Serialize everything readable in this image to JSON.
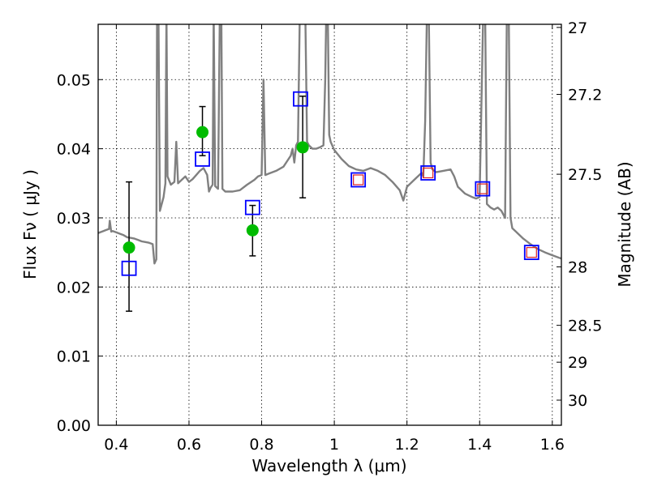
{
  "chart_data": {
    "type": "scatter",
    "xlabel": "Wavelength  λ (μm)",
    "ylabel": "Flux  Fν  ( μJy )",
    "ylabel_right": "Magnitude (AB)",
    "xlim": [
      0.35,
      1.625
    ],
    "ylim": [
      0.0,
      0.058
    ],
    "grid": true,
    "x_ticks": [
      {
        "v": 0.4,
        "label": "0.4"
      },
      {
        "v": 0.6,
        "label": "0.6"
      },
      {
        "v": 0.8,
        "label": "0.8"
      },
      {
        "v": 1.0,
        "label": "1"
      },
      {
        "v": 1.2,
        "label": "1.2"
      },
      {
        "v": 1.4,
        "label": "1.4"
      },
      {
        "v": 1.6,
        "label": "1.6"
      }
    ],
    "y_ticks": [
      {
        "v": 0.0,
        "label": "0.00"
      },
      {
        "v": 0.01,
        "label": "0.01"
      },
      {
        "v": 0.02,
        "label": "0.02"
      },
      {
        "v": 0.03,
        "label": "0.03"
      },
      {
        "v": 0.04,
        "label": "0.04"
      },
      {
        "v": 0.05,
        "label": "0.05"
      }
    ],
    "y2_ticks": [
      {
        "mag": 27,
        "label": "27"
      },
      {
        "mag": 27.2,
        "label": "27.2"
      },
      {
        "mag": 27.5,
        "label": "27.5"
      },
      {
        "mag": 28,
        "label": "28"
      },
      {
        "mag": 28.5,
        "label": "28.5"
      },
      {
        "mag": 29,
        "label": "29"
      },
      {
        "mag": 30,
        "label": "30"
      }
    ],
    "colors": {
      "sed": "#808080",
      "observed": "#00bb00",
      "model": "#0000ff",
      "model_inner": "#dd2222",
      "errorbar": "#000000"
    },
    "series": [
      {
        "kind": "line",
        "points": [
          [
            0.35,
            0.0278
          ],
          [
            0.36,
            0.028
          ],
          [
            0.37,
            0.0282
          ],
          [
            0.38,
            0.0284
          ],
          [
            0.382,
            0.0296
          ],
          [
            0.386,
            0.028
          ],
          [
            0.39,
            0.0281
          ],
          [
            0.4,
            0.0279
          ],
          [
            0.41,
            0.0277
          ],
          [
            0.42,
            0.0275
          ],
          [
            0.43,
            0.0272
          ],
          [
            0.44,
            0.0271
          ],
          [
            0.45,
            0.027
          ],
          [
            0.46,
            0.0268
          ],
          [
            0.47,
            0.0266
          ],
          [
            0.48,
            0.0265
          ],
          [
            0.49,
            0.0264
          ],
          [
            0.5,
            0.0262
          ],
          [
            0.505,
            0.0234
          ],
          [
            0.51,
            0.024
          ],
          [
            0.512,
            0.06
          ],
          [
            0.516,
            0.06
          ],
          [
            0.52,
            0.031
          ],
          [
            0.53,
            0.033
          ],
          [
            0.535,
            0.035
          ],
          [
            0.538,
            0.06
          ],
          [
            0.541,
            0.036
          ],
          [
            0.55,
            0.0348
          ],
          [
            0.56,
            0.0352
          ],
          [
            0.565,
            0.041
          ],
          [
            0.57,
            0.035
          ],
          [
            0.58,
            0.0355
          ],
          [
            0.59,
            0.036
          ],
          [
            0.6,
            0.0352
          ],
          [
            0.61,
            0.0356
          ],
          [
            0.62,
            0.0362
          ],
          [
            0.63,
            0.0368
          ],
          [
            0.64,
            0.0372
          ],
          [
            0.65,
            0.0362
          ],
          [
            0.655,
            0.0338
          ],
          [
            0.66,
            0.0344
          ],
          [
            0.665,
            0.0348
          ],
          [
            0.668,
            0.06
          ],
          [
            0.672,
            0.0346
          ],
          [
            0.68,
            0.0342
          ],
          [
            0.685,
            0.06
          ],
          [
            0.689,
            0.06
          ],
          [
            0.692,
            0.0342
          ],
          [
            0.7,
            0.0338
          ],
          [
            0.72,
            0.0338
          ],
          [
            0.74,
            0.034
          ],
          [
            0.76,
            0.0348
          ],
          [
            0.78,
            0.0355
          ],
          [
            0.79,
            0.036
          ],
          [
            0.8,
            0.0362
          ],
          [
            0.805,
            0.05
          ],
          [
            0.81,
            0.0362
          ],
          [
            0.82,
            0.0364
          ],
          [
            0.84,
            0.0368
          ],
          [
            0.86,
            0.0374
          ],
          [
            0.87,
            0.0382
          ],
          [
            0.88,
            0.039
          ],
          [
            0.885,
            0.04
          ],
          [
            0.89,
            0.038
          ],
          [
            0.895,
            0.0405
          ],
          [
            0.9,
            0.041
          ],
          [
            0.905,
            0.06
          ],
          [
            0.91,
            0.06
          ],
          [
            0.915,
            0.06
          ],
          [
            0.92,
            0.06
          ],
          [
            0.925,
            0.041
          ],
          [
            0.93,
            0.0405
          ],
          [
            0.94,
            0.04
          ],
          [
            0.95,
            0.04
          ],
          [
            0.96,
            0.0402
          ],
          [
            0.97,
            0.0405
          ],
          [
            0.975,
            0.05
          ],
          [
            0.978,
            0.06
          ],
          [
            0.982,
            0.06
          ],
          [
            0.986,
            0.042
          ],
          [
            0.99,
            0.041
          ],
          [
            1.0,
            0.0398
          ],
          [
            1.02,
            0.0385
          ],
          [
            1.04,
            0.0375
          ],
          [
            1.06,
            0.037
          ],
          [
            1.08,
            0.0368
          ],
          [
            1.1,
            0.0372
          ],
          [
            1.12,
            0.0368
          ],
          [
            1.14,
            0.0362
          ],
          [
            1.16,
            0.0352
          ],
          [
            1.18,
            0.034
          ],
          [
            1.19,
            0.0325
          ],
          [
            1.2,
            0.0345
          ],
          [
            1.21,
            0.035
          ],
          [
            1.22,
            0.0355
          ],
          [
            1.23,
            0.036
          ],
          [
            1.24,
            0.0365
          ],
          [
            1.245,
            0.036
          ],
          [
            1.25,
            0.044
          ],
          [
            1.255,
            0.06
          ],
          [
            1.26,
            0.06
          ],
          [
            1.265,
            0.038
          ],
          [
            1.27,
            0.037
          ],
          [
            1.28,
            0.0366
          ],
          [
            1.3,
            0.0368
          ],
          [
            1.32,
            0.037
          ],
          [
            1.33,
            0.036
          ],
          [
            1.34,
            0.0345
          ],
          [
            1.36,
            0.0335
          ],
          [
            1.38,
            0.033
          ],
          [
            1.39,
            0.0328
          ],
          [
            1.4,
            0.033
          ],
          [
            1.41,
            0.06
          ],
          [
            1.415,
            0.06
          ],
          [
            1.42,
            0.032
          ],
          [
            1.43,
            0.0315
          ],
          [
            1.44,
            0.0312
          ],
          [
            1.45,
            0.0315
          ],
          [
            1.46,
            0.031
          ],
          [
            1.47,
            0.03
          ],
          [
            1.475,
            0.06
          ],
          [
            1.48,
            0.06
          ],
          [
            1.485,
            0.03
          ],
          [
            1.49,
            0.0285
          ],
          [
            1.5,
            0.028
          ],
          [
            1.52,
            0.027
          ],
          [
            1.54,
            0.0262
          ],
          [
            1.56,
            0.0255
          ],
          [
            1.58,
            0.025
          ],
          [
            1.6,
            0.0246
          ],
          [
            1.625,
            0.0241
          ]
        ]
      },
      {
        "kind": "observed",
        "points": [
          {
            "x": 0.435,
            "y": 0.0257,
            "err_lo": 0.0165,
            "err_hi": 0.0352
          },
          {
            "x": 0.637,
            "y": 0.0424,
            "err_lo": 0.039,
            "err_hi": 0.0461
          },
          {
            "x": 0.775,
            "y": 0.0282,
            "err_lo": 0.0245,
            "err_hi": 0.0318
          },
          {
            "x": 0.913,
            "y": 0.0402,
            "err_lo": 0.0329,
            "err_hi": 0.0476
          }
        ]
      },
      {
        "kind": "model-square",
        "points": [
          {
            "x": 0.435,
            "y": 0.0227
          },
          {
            "x": 0.637,
            "y": 0.0385
          },
          {
            "x": 0.775,
            "y": 0.0315
          },
          {
            "x": 0.907,
            "y": 0.0472
          },
          {
            "x": 1.066,
            "y": 0.0355
          },
          {
            "x": 1.258,
            "y": 0.0365
          },
          {
            "x": 1.408,
            "y": 0.0342
          },
          {
            "x": 1.543,
            "y": 0.025
          }
        ]
      },
      {
        "kind": "model-square-inner",
        "points": [
          {
            "x": 1.066,
            "y": 0.0355
          },
          {
            "x": 1.258,
            "y": 0.0365
          },
          {
            "x": 1.408,
            "y": 0.0342
          },
          {
            "x": 1.543,
            "y": 0.025
          }
        ]
      }
    ]
  }
}
